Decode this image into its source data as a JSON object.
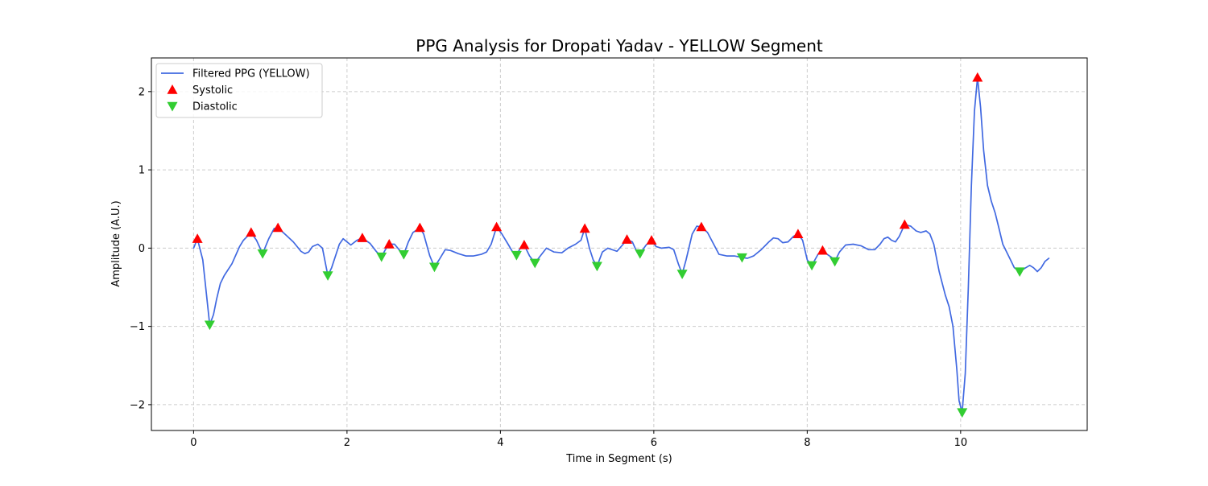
{
  "chart_data": {
    "type": "line",
    "title": "PPG Analysis for Dropati Yadav - YELLOW Segment",
    "xlabel": "Time in Segment (s)",
    "ylabel": "Amplitude (A.U.)",
    "xlim": [
      -0.55,
      11.65
    ],
    "ylim": [
      -2.33,
      2.43
    ],
    "grid": true,
    "legend_position": "top-left",
    "x_ticks": [
      0,
      2,
      4,
      6,
      8,
      10
    ],
    "x_tick_labels": [
      "0",
      "2",
      "4",
      "6",
      "8",
      "10"
    ],
    "y_ticks": [
      -2,
      -1,
      0,
      1,
      2
    ],
    "y_tick_labels": [
      "−2",
      "−1",
      "0",
      "1",
      "2"
    ],
    "colors": {
      "line": "#4169e1",
      "systolic": "#ff0000",
      "diastolic": "#32cd32",
      "grid": "#cccccc"
    },
    "series": [
      {
        "name": "Filtered PPG (YELLOW)",
        "kind": "line",
        "points": [
          [
            0.0,
            0.0
          ],
          [
            0.05,
            0.12
          ],
          [
            0.12,
            -0.15
          ],
          [
            0.18,
            -0.7
          ],
          [
            0.21,
            -0.98
          ],
          [
            0.26,
            -0.85
          ],
          [
            0.3,
            -0.65
          ],
          [
            0.35,
            -0.45
          ],
          [
            0.4,
            -0.35
          ],
          [
            0.5,
            -0.2
          ],
          [
            0.6,
            0.02
          ],
          [
            0.65,
            0.1
          ],
          [
            0.75,
            0.2
          ],
          [
            0.82,
            0.1
          ],
          [
            0.9,
            -0.07
          ],
          [
            0.98,
            0.12
          ],
          [
            1.05,
            0.25
          ],
          [
            1.1,
            0.26
          ],
          [
            1.2,
            0.17
          ],
          [
            1.3,
            0.08
          ],
          [
            1.4,
            -0.04
          ],
          [
            1.45,
            -0.07
          ],
          [
            1.5,
            -0.05
          ],
          [
            1.55,
            0.02
          ],
          [
            1.62,
            0.05
          ],
          [
            1.68,
            0.0
          ],
          [
            1.75,
            -0.35
          ],
          [
            1.8,
            -0.25
          ],
          [
            1.9,
            0.05
          ],
          [
            1.95,
            0.12
          ],
          [
            2.05,
            0.04
          ],
          [
            2.13,
            0.1
          ],
          [
            2.2,
            0.13
          ],
          [
            2.3,
            0.06
          ],
          [
            2.38,
            -0.04
          ],
          [
            2.45,
            -0.11
          ],
          [
            2.5,
            -0.02
          ],
          [
            2.55,
            0.05
          ],
          [
            2.62,
            0.05
          ],
          [
            2.68,
            -0.02
          ],
          [
            2.74,
            -0.08
          ],
          [
            2.8,
            0.08
          ],
          [
            2.86,
            0.2
          ],
          [
            2.95,
            0.26
          ],
          [
            3.0,
            0.18
          ],
          [
            3.08,
            -0.1
          ],
          [
            3.14,
            -0.24
          ],
          [
            3.2,
            -0.15
          ],
          [
            3.28,
            -0.02
          ],
          [
            3.35,
            -0.03
          ],
          [
            3.45,
            -0.07
          ],
          [
            3.55,
            -0.1
          ],
          [
            3.65,
            -0.1
          ],
          [
            3.75,
            -0.08
          ],
          [
            3.82,
            -0.05
          ],
          [
            3.88,
            0.05
          ],
          [
            3.95,
            0.27
          ],
          [
            4.02,
            0.18
          ],
          [
            4.1,
            0.05
          ],
          [
            4.16,
            -0.05
          ],
          [
            4.21,
            -0.09
          ],
          [
            4.26,
            0.0
          ],
          [
            4.31,
            0.04
          ],
          [
            4.38,
            -0.1
          ],
          [
            4.45,
            -0.19
          ],
          [
            4.52,
            -0.1
          ],
          [
            4.6,
            0.0
          ],
          [
            4.7,
            -0.05
          ],
          [
            4.8,
            -0.06
          ],
          [
            4.88,
            0.0
          ],
          [
            4.98,
            0.05
          ],
          [
            5.05,
            0.1
          ],
          [
            5.1,
            0.25
          ],
          [
            5.16,
            0.0
          ],
          [
            5.21,
            -0.15
          ],
          [
            5.26,
            -0.23
          ],
          [
            5.33,
            -0.05
          ],
          [
            5.4,
            0.0
          ],
          [
            5.52,
            -0.04
          ],
          [
            5.6,
            0.05
          ],
          [
            5.65,
            0.11
          ],
          [
            5.72,
            0.08
          ],
          [
            5.78,
            -0.05
          ],
          [
            5.82,
            -0.07
          ],
          [
            5.9,
            0.04
          ],
          [
            5.97,
            0.1
          ],
          [
            6.03,
            0.02
          ],
          [
            6.1,
            0.0
          ],
          [
            6.2,
            0.01
          ],
          [
            6.26,
            -0.02
          ],
          [
            6.32,
            -0.2
          ],
          [
            6.37,
            -0.33
          ],
          [
            6.42,
            -0.15
          ],
          [
            6.5,
            0.18
          ],
          [
            6.56,
            0.28
          ],
          [
            6.62,
            0.27
          ],
          [
            6.7,
            0.2
          ],
          [
            6.78,
            0.05
          ],
          [
            6.85,
            -0.08
          ],
          [
            6.95,
            -0.1
          ],
          [
            7.05,
            -0.1
          ],
          [
            7.15,
            -0.12
          ],
          [
            7.22,
            -0.13
          ],
          [
            7.3,
            -0.1
          ],
          [
            7.4,
            -0.02
          ],
          [
            7.5,
            0.08
          ],
          [
            7.56,
            0.13
          ],
          [
            7.62,
            0.12
          ],
          [
            7.68,
            0.07
          ],
          [
            7.75,
            0.08
          ],
          [
            7.82,
            0.15
          ],
          [
            7.88,
            0.18
          ],
          [
            7.94,
            0.1
          ],
          [
            8.0,
            -0.15
          ],
          [
            8.06,
            -0.22
          ],
          [
            8.14,
            -0.08
          ],
          [
            8.2,
            -0.03
          ],
          [
            8.26,
            -0.08
          ],
          [
            8.32,
            -0.12
          ],
          [
            8.36,
            -0.17
          ],
          [
            8.42,
            -0.05
          ],
          [
            8.5,
            0.04
          ],
          [
            8.6,
            0.05
          ],
          [
            8.7,
            0.03
          ],
          [
            8.8,
            -0.02
          ],
          [
            8.88,
            -0.02
          ],
          [
            8.95,
            0.05
          ],
          [
            9.0,
            0.12
          ],
          [
            9.05,
            0.14
          ],
          [
            9.1,
            0.1
          ],
          [
            9.15,
            0.08
          ],
          [
            9.2,
            0.15
          ],
          [
            9.27,
            0.3
          ],
          [
            9.35,
            0.28
          ],
          [
            9.42,
            0.22
          ],
          [
            9.48,
            0.2
          ],
          [
            9.55,
            0.22
          ],
          [
            9.6,
            0.18
          ],
          [
            9.65,
            0.05
          ],
          [
            9.72,
            -0.3
          ],
          [
            9.8,
            -0.6
          ],
          [
            9.85,
            -0.75
          ],
          [
            9.9,
            -1.0
          ],
          [
            9.95,
            -1.55
          ],
          [
            9.98,
            -1.95
          ],
          [
            10.02,
            -2.1
          ],
          [
            10.06,
            -1.6
          ],
          [
            10.1,
            -0.5
          ],
          [
            10.14,
            0.8
          ],
          [
            10.18,
            1.75
          ],
          [
            10.22,
            2.18
          ],
          [
            10.26,
            1.8
          ],
          [
            10.3,
            1.25
          ],
          [
            10.35,
            0.8
          ],
          [
            10.4,
            0.6
          ],
          [
            10.45,
            0.45
          ],
          [
            10.5,
            0.25
          ],
          [
            10.55,
            0.05
          ],
          [
            10.65,
            -0.15
          ],
          [
            10.7,
            -0.25
          ],
          [
            10.77,
            -0.3
          ],
          [
            10.85,
            -0.25
          ],
          [
            10.9,
            -0.22
          ],
          [
            10.95,
            -0.25
          ],
          [
            11.0,
            -0.3
          ],
          [
            11.05,
            -0.25
          ],
          [
            11.1,
            -0.17
          ],
          [
            11.15,
            -0.13
          ]
        ]
      },
      {
        "name": "Systolic",
        "kind": "marker-up",
        "points": [
          [
            0.05,
            0.12
          ],
          [
            0.75,
            0.2
          ],
          [
            1.1,
            0.26
          ],
          [
            2.2,
            0.13
          ],
          [
            2.55,
            0.05
          ],
          [
            2.95,
            0.26
          ],
          [
            3.95,
            0.27
          ],
          [
            4.31,
            0.04
          ],
          [
            5.1,
            0.25
          ],
          [
            5.65,
            0.11
          ],
          [
            5.97,
            0.1
          ],
          [
            6.62,
            0.27
          ],
          [
            7.88,
            0.18
          ],
          [
            8.2,
            -0.03
          ],
          [
            9.27,
            0.3
          ],
          [
            10.22,
            2.18
          ]
        ]
      },
      {
        "name": "Diastolic",
        "kind": "marker-down",
        "points": [
          [
            0.21,
            -0.98
          ],
          [
            0.9,
            -0.07
          ],
          [
            1.75,
            -0.35
          ],
          [
            2.45,
            -0.11
          ],
          [
            2.74,
            -0.08
          ],
          [
            3.14,
            -0.24
          ],
          [
            4.21,
            -0.09
          ],
          [
            4.45,
            -0.19
          ],
          [
            5.26,
            -0.23
          ],
          [
            5.82,
            -0.07
          ],
          [
            6.37,
            -0.33
          ],
          [
            7.15,
            -0.12
          ],
          [
            8.06,
            -0.22
          ],
          [
            8.36,
            -0.17
          ],
          [
            10.02,
            -2.1
          ],
          [
            10.77,
            -0.3
          ]
        ]
      }
    ]
  }
}
